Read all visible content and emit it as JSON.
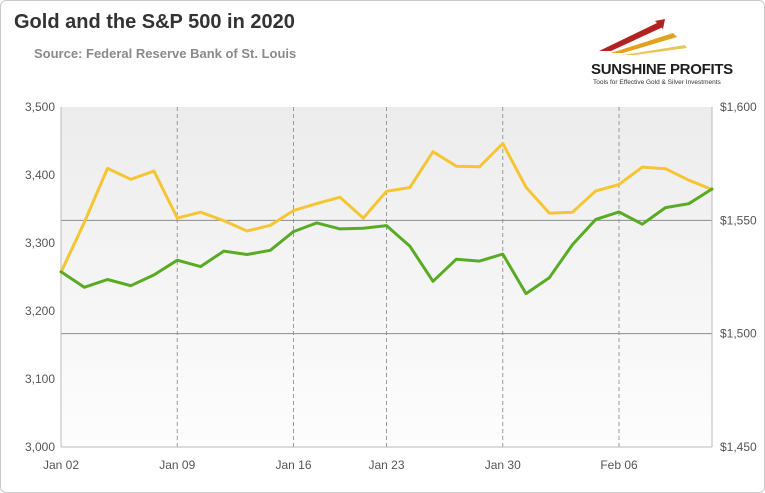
{
  "header": {
    "title": "Gold and the S&P 500 in 2020",
    "subtitle": "Source: Federal Reserve Bank of St. Louis"
  },
  "logo": {
    "name": "SUNSHINE PROFITS",
    "tagline": "Tools for Effective Gold & Silver Investments",
    "colors": [
      "#b22222",
      "#e2a21e",
      "#e8c65a"
    ]
  },
  "chart_data": {
    "type": "line",
    "title": "Gold and the S&P 500 in 2020",
    "x_tick_labels": [
      "Jan 02",
      "Jan 09",
      "Jan 16",
      "Jan 23",
      "Jan 30",
      "Feb 06"
    ],
    "x": [
      "Jan 02",
      "Jan 03",
      "Jan 06",
      "Jan 07",
      "Jan 08",
      "Jan 09",
      "Jan 10",
      "Jan 13",
      "Jan 14",
      "Jan 15",
      "Jan 16",
      "Jan 17",
      "Jan 21",
      "Jan 22",
      "Jan 23",
      "Jan 24",
      "Jan 27",
      "Jan 28",
      "Jan 29",
      "Jan 30",
      "Jan 31",
      "Feb 03",
      "Feb 04",
      "Feb 05",
      "Feb 06",
      "Feb 07",
      "Feb 10",
      "Feb 11",
      "Feb 12"
    ],
    "left_axis": {
      "ticks": [
        "3,000",
        "3,100",
        "3,200",
        "3,300",
        "3,400",
        "3,500"
      ],
      "range": [
        3000,
        3500
      ]
    },
    "right_axis": {
      "ticks": [
        "$1,450",
        "$1,500",
        "$1,550",
        "$1,600"
      ],
      "range": [
        1450,
        1600
      ]
    },
    "series": [
      {
        "axis": "right",
        "color": "#f5c533",
        "values": [
          1527.1,
          1549.1,
          1572.9,
          1568.1,
          1571.7,
          1551.0,
          1553.6,
          1549.9,
          1545.3,
          1547.8,
          1554.3,
          1557.4,
          1560.2,
          1551.0,
          1562.8,
          1564.5,
          1580.3,
          1573.9,
          1573.6,
          1583.9,
          1564.6,
          1553.2,
          1553.6,
          1563.0,
          1565.8,
          1573.5,
          1572.8,
          1567.7,
          1563.6
        ]
      },
      {
        "axis": "left",
        "color": "#5aab24",
        "values": [
          3257.85,
          3234.85,
          3246.28,
          3237.18,
          3253.05,
          3274.7,
          3265.35,
          3288.13,
          3283.15,
          3289.29,
          3316.81,
          3329.62,
          3320.79,
          3321.75,
          3325.54,
          3295.47,
          3243.63,
          3276.24,
          3273.4,
          3283.66,
          3225.52,
          3248.92,
          3297.59,
          3334.69,
          3345.78,
          3327.71,
          3352.09,
          3357.75,
          3379.45
        ]
      }
    ],
    "grid": {
      "x_dashed_at_ticks": true,
      "y_solid_at": [
        3166.7,
        3333.3
      ]
    },
    "plot_background": "gradient light gray"
  }
}
